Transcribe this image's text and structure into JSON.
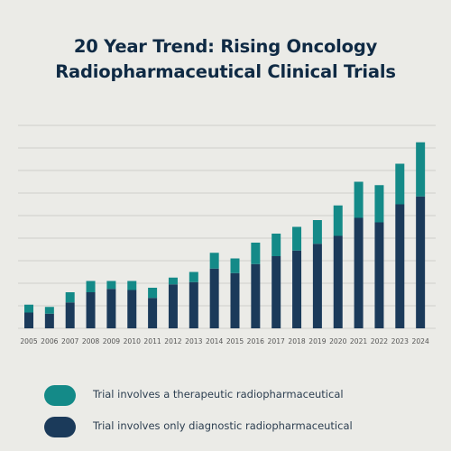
{
  "title_line1": "20 Year Trend: Rising Oncology",
  "title_line2": "Radiopharmaceutical Clinical Trials",
  "colors": {
    "therapeutic": "#148a88",
    "diagnostic": "#1b3a5a",
    "grid": "#cfcfcb",
    "axis_text": "#555555"
  },
  "legend": {
    "therapeutic": "Trial involves a therapeutic radiopharmaceutical",
    "diagnostic": "Trial involves only diagnostic radiopharmaceutical"
  },
  "chart_data": {
    "type": "bar",
    "stacked": true,
    "title": "20 Year Trend: Rising Oncology Radiopharmaceutical Clinical Trials",
    "categories": [
      "2005",
      "2006",
      "2007",
      "2008",
      "2009",
      "2010",
      "2011",
      "2012",
      "2013",
      "2014",
      "2015",
      "2016",
      "2017",
      "2018",
      "2019",
      "2020",
      "2021",
      "2022",
      "2023",
      "2024"
    ],
    "series": [
      {
        "name": "Trial involves only diagnostic radiopharmaceutical",
        "color_key": "diagnostic",
        "values": [
          7,
          6.5,
          11.5,
          16,
          17.5,
          17,
          13.5,
          19.5,
          20.5,
          26.5,
          24.5,
          28.5,
          32,
          34.5,
          37.5,
          41,
          49,
          47,
          55,
          58.5
        ]
      },
      {
        "name": "Trial involves a therapeutic radiopharmaceutical",
        "color_key": "therapeutic",
        "values": [
          3.5,
          3,
          4.5,
          5,
          3.5,
          4,
          4.5,
          3,
          4.5,
          7,
          6.5,
          9.5,
          10,
          10.5,
          10.5,
          13.5,
          16,
          16.5,
          18,
          24
        ]
      }
    ],
    "ylim": [
      0,
      92
    ],
    "y_gridlines": [
      0,
      10,
      20,
      30,
      40,
      50,
      60,
      70,
      80,
      90
    ],
    "y_tick_labels_shown": false,
    "grid": true,
    "legend_position": "bottom"
  }
}
